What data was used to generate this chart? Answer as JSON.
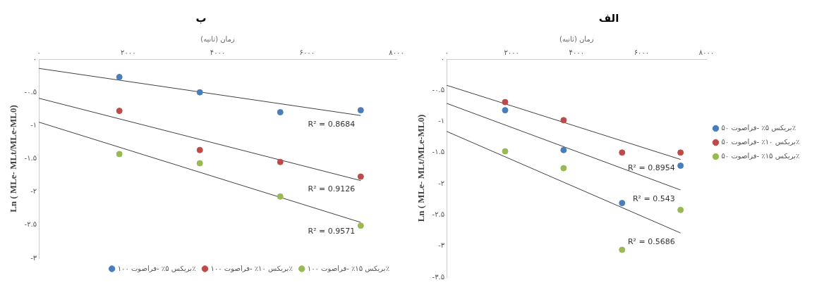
{
  "chart_data": [
    {
      "type": "scatter",
      "title": "ب",
      "xlabel": "زمان (ثانیه)",
      "ylabel": "Ln ( MLe- MLt/MLe-ML0)",
      "xlim": [
        0,
        8000
      ],
      "ylim": [
        -3,
        0
      ],
      "xticks": [
        {
          "value": 0,
          "label": "۰"
        },
        {
          "value": 2000,
          "label": "۲۰۰۰"
        },
        {
          "value": 4000,
          "label": "۴۰۰۰"
        },
        {
          "value": 6000,
          "label": "۶۰۰۰"
        },
        {
          "value": 8000,
          "label": "۸۰۰۰"
        }
      ],
      "yticks": [
        {
          "value": 0,
          "label": "۰"
        },
        {
          "value": -0.5,
          "label": "-۰.۵"
        },
        {
          "value": -1,
          "label": "-۱"
        },
        {
          "value": -1.5,
          "label": "-۱.۵"
        },
        {
          "value": -2,
          "label": "-۲"
        },
        {
          "value": -2.5,
          "label": "-۲.۵"
        },
        {
          "value": -3,
          "label": "-۳"
        }
      ],
      "grid": false,
      "legend": "bottom right",
      "marker": "circle",
      "series": [
        {
          "name": "بریکس ۵٪ -فراصوت ۱۰۰٪",
          "color": "#4a7ebb",
          "x": [
            1800,
            3600,
            5400,
            7200
          ],
          "values": [
            -0.27,
            -0.5,
            -0.8,
            -0.77
          ]
        },
        {
          "name": "بریکس ۱۰٪ -فراصوت ۱۰۰٪",
          "color": "#be4b48",
          "x": [
            1800,
            3600,
            5400,
            7200
          ],
          "values": [
            -0.78,
            -1.37,
            -1.55,
            -1.77
          ]
        },
        {
          "name": "بریکس ۱۵٪ -فراصوت ۱۰۰٪",
          "color": "#98b954",
          "x": [
            1800,
            3600,
            5400,
            7200
          ],
          "values": [
            -1.43,
            -1.57,
            -2.07,
            -2.51
          ]
        },
        {
          "type": "line",
          "marker": "none",
          "color": "#404040",
          "x": [
            0,
            7200
          ],
          "values": [
            -0.14,
            -0.85
          ]
        },
        {
          "type": "line",
          "marker": "none",
          "color": "#404040",
          "x": [
            0,
            7200
          ],
          "values": [
            -0.59,
            -1.83
          ]
        },
        {
          "type": "line",
          "marker": "none",
          "color": "#404040",
          "x": [
            0,
            7200
          ],
          "values": [
            -0.95,
            -2.46
          ]
        }
      ],
      "annotations": [
        "R² = 0.8684",
        "R² = 0.9126",
        "R² = 0.9571"
      ]
    },
    {
      "type": "scatter",
      "title": "الف",
      "xlabel": "زمان (ثانیه)",
      "ylabel": "Ln ( MLe- MLt/MLe-ML0)",
      "xlim": [
        0,
        8000
      ],
      "ylim": [
        -3.5,
        0
      ],
      "xticks": [
        {
          "value": 0,
          "label": "۰"
        },
        {
          "value": 2000,
          "label": "۲۰۰۰"
        },
        {
          "value": 4000,
          "label": "۴۰۰۰"
        },
        {
          "value": 6000,
          "label": "۶۰۰۰"
        },
        {
          "value": 8000,
          "label": "۸۰۰۰"
        }
      ],
      "yticks": [
        {
          "value": 0,
          "label": "۰"
        },
        {
          "value": -0.5,
          "label": "-۰.۵"
        },
        {
          "value": -1,
          "label": "-۱"
        },
        {
          "value": -1.5,
          "label": "-۱.۵"
        },
        {
          "value": -2,
          "label": "-۲"
        },
        {
          "value": -2.5,
          "label": "-۲.۵"
        },
        {
          "value": -3,
          "label": "-۳"
        },
        {
          "value": -3.5,
          "label": "-۳.۵"
        }
      ],
      "grid": false,
      "legend": "right",
      "marker": "circle",
      "series": [
        {
          "name": "بریکس ۵٪ -فراصوت ۵۰٪",
          "color": "#4a7ebb",
          "x": [
            1800,
            3600,
            5400,
            7200
          ],
          "values": [
            -0.82,
            -1.46,
            -2.31,
            -1.71
          ]
        },
        {
          "name": "بریکس ۱۰٪ -فراصوت ۵۰٪",
          "color": "#be4b48",
          "x": [
            1800,
            3600,
            5400,
            7200
          ],
          "values": [
            -0.69,
            -0.98,
            -1.5,
            -1.5
          ]
        },
        {
          "name": "بریکس ۱۵٪ -فراصوت ۵۰٪",
          "color": "#98b954",
          "x": [
            1800,
            3600,
            5400,
            7200
          ],
          "values": [
            -1.48,
            -1.75,
            -3.06,
            -2.42
          ]
        },
        {
          "type": "line",
          "marker": "none",
          "color": "#404040",
          "x": [
            0,
            7200
          ],
          "values": [
            -0.42,
            -1.61
          ]
        },
        {
          "type": "line",
          "marker": "none",
          "color": "#404040",
          "x": [
            0,
            7200
          ],
          "values": [
            -0.71,
            -2.1
          ]
        },
        {
          "type": "line",
          "marker": "none",
          "color": "#404040",
          "x": [
            0,
            7200
          ],
          "values": [
            -1.16,
            -2.79
          ]
        }
      ],
      "annotations": [
        "R² = 0.8954",
        "R² = 0.543",
        "R² = 0.5686"
      ]
    }
  ]
}
